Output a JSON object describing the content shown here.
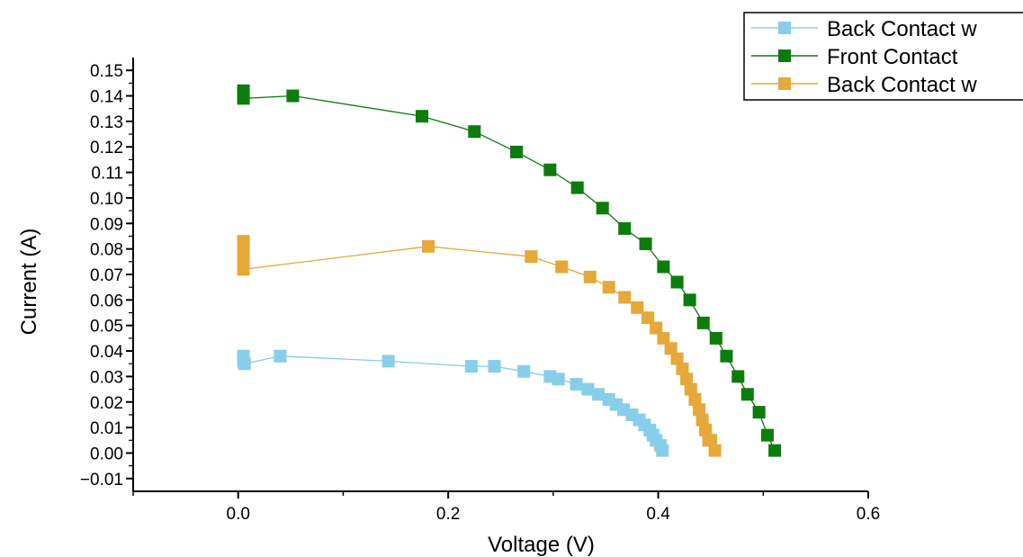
{
  "chart_data": {
    "type": "scatter",
    "title": "",
    "xlabel": "Voltage (V)",
    "ylabel": "Current (A)",
    "xlim": [
      -0.1,
      0.6
    ],
    "ylim": [
      -0.015,
      0.155
    ],
    "xticks": [
      0.0,
      0.2,
      0.4,
      0.6
    ],
    "xtick_labels": [
      "0.0",
      "0.2",
      "0.4",
      "0.6"
    ],
    "yticks": [
      -0.01,
      0.0,
      0.01,
      0.02,
      0.03,
      0.04,
      0.05,
      0.06,
      0.07,
      0.08,
      0.09,
      0.1,
      0.11,
      0.12,
      0.13,
      0.14,
      0.15
    ],
    "ytick_labels": [
      "−0.01",
      "0.00",
      "0.01",
      "0.02",
      "0.03",
      "0.04",
      "0.05",
      "0.06",
      "0.07",
      "0.08",
      "0.09",
      "0.10",
      "0.11",
      "0.12",
      "0.13",
      "0.14",
      "0.15"
    ],
    "grid": false,
    "legend_position": "top-right",
    "series": [
      {
        "name": "Back Contact w",
        "color": "#87ceeb",
        "marker": "square",
        "x": [
          0.005,
          0.005,
          0.006,
          0.04,
          0.143,
          0.222,
          0.244,
          0.272,
          0.297,
          0.305,
          0.322,
          0.333,
          0.343,
          0.353,
          0.36,
          0.367,
          0.375,
          0.382,
          0.387,
          0.392,
          0.395,
          0.398,
          0.402,
          0.404
        ],
        "y": [
          0.038,
          0.036,
          0.035,
          0.038,
          0.036,
          0.034,
          0.034,
          0.032,
          0.03,
          0.029,
          0.027,
          0.025,
          0.023,
          0.021,
          0.019,
          0.017,
          0.015,
          0.013,
          0.011,
          0.009,
          0.007,
          0.005,
          0.003,
          0.001
        ]
      },
      {
        "name": "Front Contact",
        "color": "#0a7d0a",
        "marker": "square",
        "x": [
          0.005,
          0.005,
          0.005,
          0.052,
          0.175,
          0.225,
          0.265,
          0.297,
          0.323,
          0.347,
          0.368,
          0.388,
          0.405,
          0.418,
          0.43,
          0.443,
          0.455,
          0.465,
          0.476,
          0.485,
          0.496,
          0.504,
          0.511
        ],
        "y": [
          0.142,
          0.141,
          0.139,
          0.14,
          0.132,
          0.126,
          0.118,
          0.111,
          0.104,
          0.096,
          0.088,
          0.082,
          0.073,
          0.067,
          0.06,
          0.051,
          0.045,
          0.038,
          0.03,
          0.023,
          0.016,
          0.007,
          0.001
        ]
      },
      {
        "name": "Back Contact w",
        "color": "#e8a838",
        "marker": "square",
        "x": [
          0.005,
          0.005,
          0.005,
          0.005,
          0.005,
          0.181,
          0.279,
          0.308,
          0.335,
          0.353,
          0.368,
          0.38,
          0.39,
          0.398,
          0.405,
          0.412,
          0.418,
          0.423,
          0.427,
          0.431,
          0.435,
          0.439,
          0.442,
          0.445,
          0.448,
          0.45,
          0.454
        ],
        "y": [
          0.083,
          0.082,
          0.079,
          0.076,
          0.072,
          0.081,
          0.077,
          0.073,
          0.069,
          0.065,
          0.061,
          0.057,
          0.053,
          0.049,
          0.045,
          0.041,
          0.037,
          0.033,
          0.029,
          0.025,
          0.021,
          0.017,
          0.013,
          0.009,
          0.005,
          0.005,
          0.001
        ]
      }
    ]
  }
}
